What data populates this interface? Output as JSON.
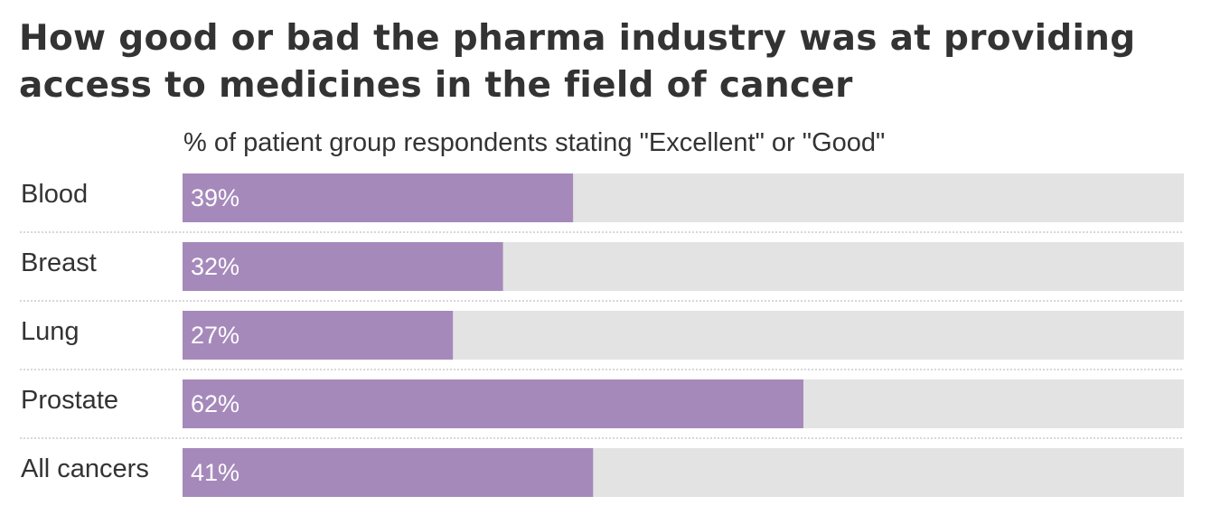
{
  "chart_data": {
    "type": "bar",
    "orientation": "horizontal",
    "title": "How good or bad the pharma industry was at providing access to medicines in the field of cancer",
    "subtitle": "% of patient group respondents stating \"Excellent\" or \"Good\"",
    "categories": [
      "Blood",
      "Breast",
      "Lung",
      "Prostate",
      "All cancers"
    ],
    "values": [
      39,
      32,
      27,
      62,
      41
    ],
    "value_labels": [
      "39%",
      "32%",
      "27%",
      "62%",
      "41%"
    ],
    "xlim": [
      0,
      100
    ],
    "grid": false,
    "colors": {
      "bar": "#a689bb",
      "track": "#e3e3e3",
      "separator": "#bfbfbf",
      "text": "#333333",
      "value_text": "#ffffff"
    }
  }
}
